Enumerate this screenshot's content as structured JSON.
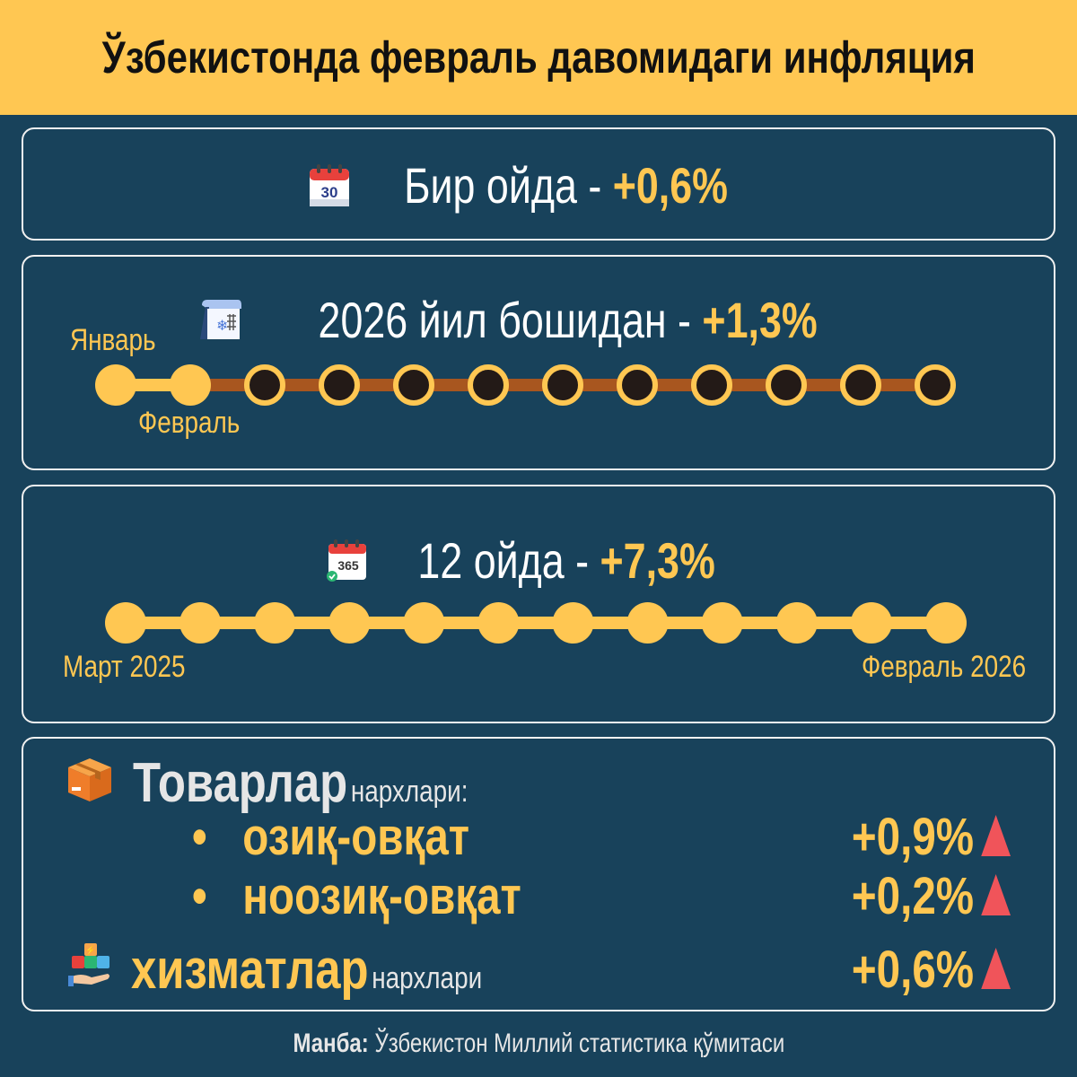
{
  "title": "Ўзбекистонда февраль давомидаги инфляция",
  "monthly": {
    "label": "Бир ойда - ",
    "value": "+0,6%",
    "icon": "calendar-30-icon"
  },
  "ytd": {
    "label": "2026 йил бошидан - ",
    "value": "+1,3%",
    "icon": "winter-calendar-icon",
    "start_label": "Январь",
    "end_label": "Февраль",
    "months_total": 12,
    "months_elapsed": 2
  },
  "annual": {
    "label": "12 ойда - ",
    "value": "+7,3%",
    "icon": "calendar-365-icon",
    "start_label": "Март 2025",
    "end_label": "Февраль 2026",
    "months_total": 12,
    "months_elapsed": 12
  },
  "breakdown": {
    "goods_title": "Товарлар",
    "goods_suffix": "нархлари:",
    "goods_icon": "box-icon",
    "items": [
      {
        "bullet": "•",
        "label": "озиқ-овқат",
        "value": "+0,9%",
        "trend": "up"
      },
      {
        "bullet": "•",
        "label": "ноозиқ-овқат",
        "value": "+0,2%",
        "trend": "up"
      }
    ],
    "services_title": "хизматлар",
    "services_suffix": "нархлари",
    "services_value": "+0,6%",
    "services_trend": "up",
    "services_icon": "services-icon"
  },
  "source": {
    "label": "Манба:",
    "text": " Ўзбекистон Миллий статистика қўмитаси"
  },
  "colors": {
    "background": "#18425b",
    "accent": "#ffc752",
    "track_future": "#a8561f",
    "dot_future": "#231a17",
    "up_arrow": "#f0545a"
  }
}
